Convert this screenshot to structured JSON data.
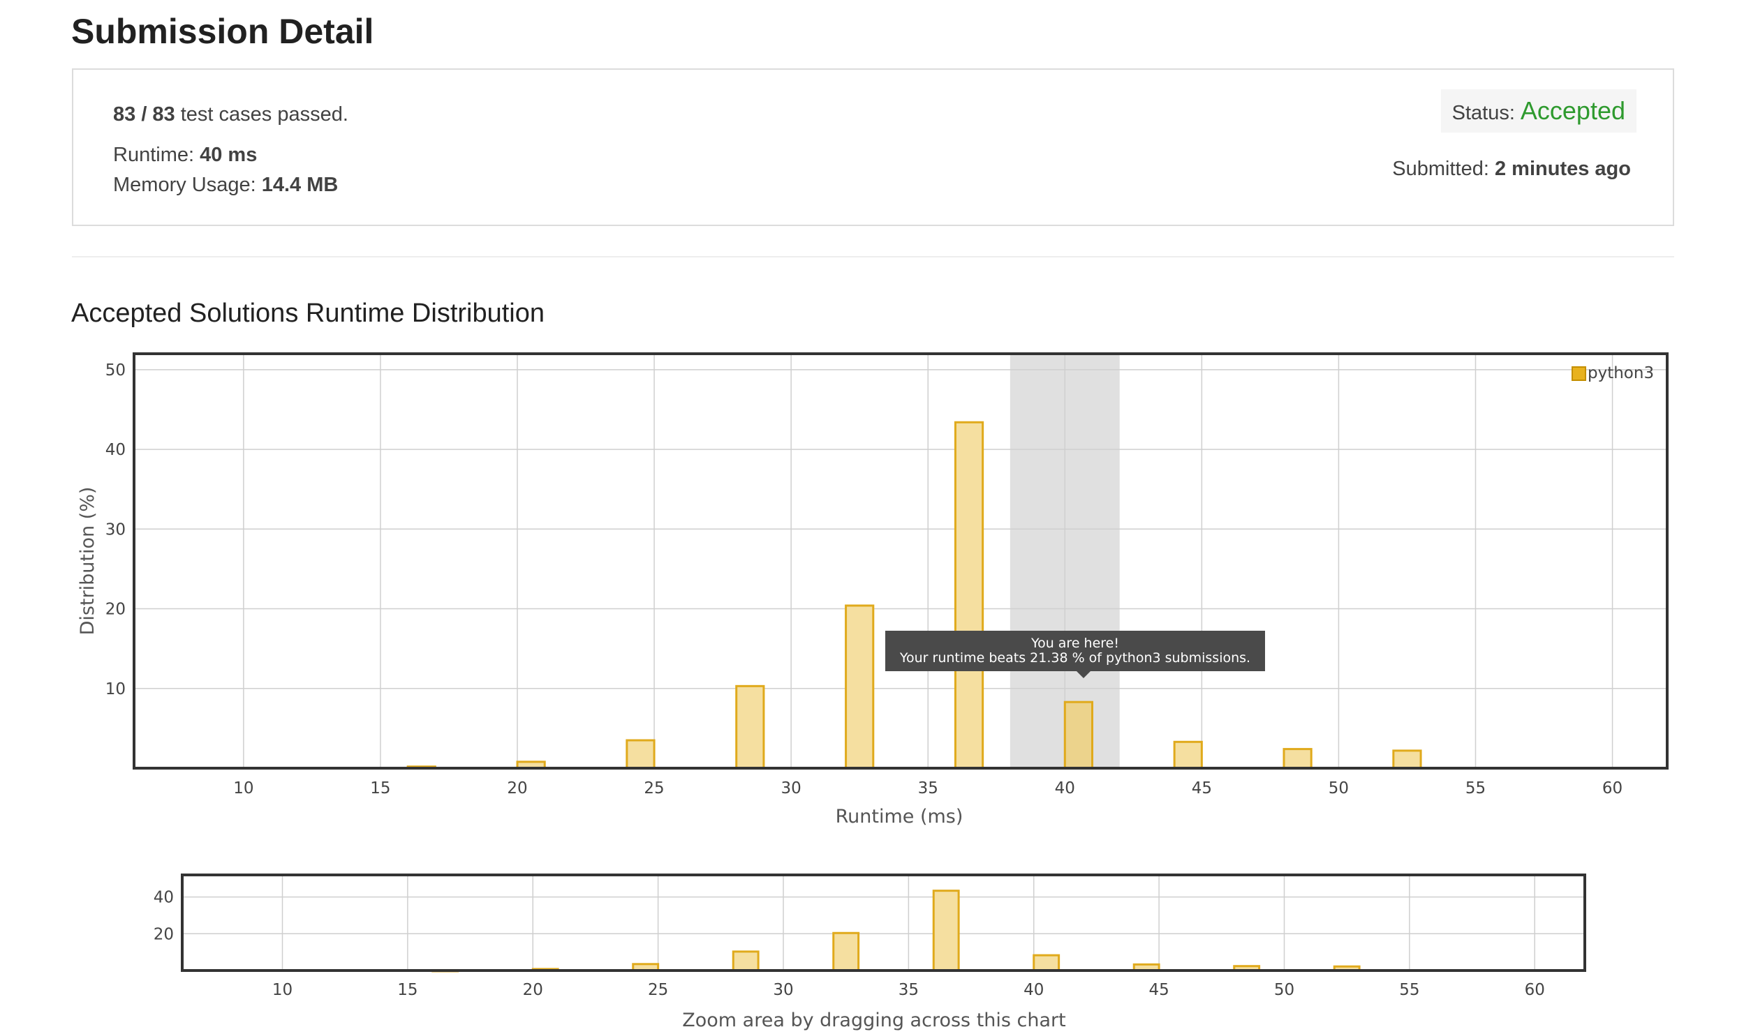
{
  "page": {
    "title": "Submission Detail"
  },
  "summary": {
    "passed": "83 / 83",
    "passed_suffix": "test cases passed.",
    "runtime_label": "Runtime:",
    "runtime_value": "40 ms",
    "memory_label": "Memory Usage:",
    "memory_value": "14.4 MB",
    "status_label": "Status:",
    "status_value": "Accepted",
    "submitted_label": "Submitted:",
    "submitted_value": "2 minutes ago"
  },
  "section": {
    "title": "Accepted Solutions Runtime Distribution"
  },
  "tooltip": {
    "line1": "You are here!",
    "line2": "Your runtime beats 21.38 % of python3 submissions."
  },
  "colors": {
    "accepted": "#2e9a2e",
    "bar_fill": "#f5dfa0",
    "bar_stroke": "#e0aa1c",
    "highlight": "#e0e0e0"
  },
  "chart_data": [
    {
      "type": "bar",
      "xlabel": "Runtime (ms)",
      "ylabel": "Distribution (%)",
      "xlim": [
        6,
        62
      ],
      "ylim": [
        0,
        52
      ],
      "xticks": [
        10,
        15,
        20,
        25,
        30,
        35,
        40,
        45,
        50,
        55,
        60
      ],
      "yticks": [
        10,
        20,
        30,
        40,
        50
      ],
      "highlight_range": [
        38,
        42
      ],
      "grid": true,
      "legend_position": "top-right",
      "series": [
        {
          "name": "python3",
          "x": [
            16.5,
            20.5,
            24.5,
            28.5,
            32.5,
            36.5,
            40.5,
            44.5,
            48.5,
            52.5
          ],
          "values": [
            0.2,
            0.8,
            3.5,
            10.3,
            20.4,
            43.4,
            8.3,
            3.3,
            2.4,
            2.2
          ]
        }
      ]
    },
    {
      "type": "bar",
      "xlabel": "Zoom area by dragging across this chart",
      "xlim": [
        6,
        62
      ],
      "ylim": [
        0,
        52
      ],
      "xticks": [
        10,
        15,
        20,
        25,
        30,
        35,
        40,
        45,
        50,
        55,
        60
      ],
      "yticks": [
        20,
        40
      ],
      "grid": true,
      "series": [
        {
          "name": "python3",
          "x": [
            16.5,
            20.5,
            24.5,
            28.5,
            32.5,
            36.5,
            40.5,
            44.5,
            48.5,
            52.5
          ],
          "values": [
            0.2,
            0.8,
            3.5,
            10.3,
            20.4,
            43.4,
            8.3,
            3.3,
            2.4,
            2.2
          ]
        }
      ]
    }
  ]
}
